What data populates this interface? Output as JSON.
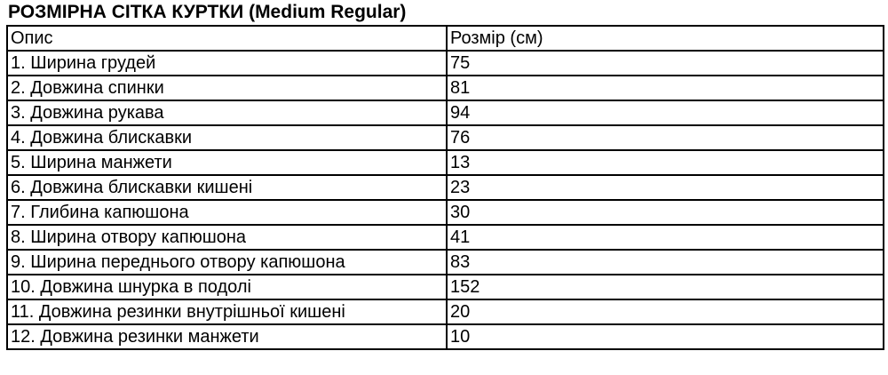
{
  "page": {
    "title": "РОЗМІРНА СІТКА КУРТКИ (Medium Regular)"
  },
  "table": {
    "columns": [
      "Опис",
      "Розмір (см)"
    ],
    "rows": [
      {
        "desc": "1. Ширина грудей",
        "size": "75"
      },
      {
        "desc": "2. Довжина спинки",
        "size": "81"
      },
      {
        "desc": "3. Довжина рукава",
        "size": "94"
      },
      {
        "desc": "4. Довжина блискавки",
        "size": "76"
      },
      {
        "desc": "5. Ширина манжети",
        "size": "13"
      },
      {
        "desc": "6. Довжина блискавки кишені",
        "size": "23"
      },
      {
        "desc": "7. Глибина капюшона",
        "size": "30"
      },
      {
        "desc": "8. Ширина отвору капюшона",
        "size": "41"
      },
      {
        "desc": "9. Ширина переднього отвору капюшона",
        "size": "83"
      },
      {
        "desc": "10. Довжина шнурка в подолі",
        "size": "152"
      },
      {
        "desc": "11. Довжина резинки внутрішньої кишені",
        "size": "20"
      },
      {
        "desc": "12. Довжина резинки манжети",
        "size": "10"
      }
    ]
  },
  "colors": {
    "background": "#ffffff",
    "text": "#000000",
    "border": "#000000"
  }
}
